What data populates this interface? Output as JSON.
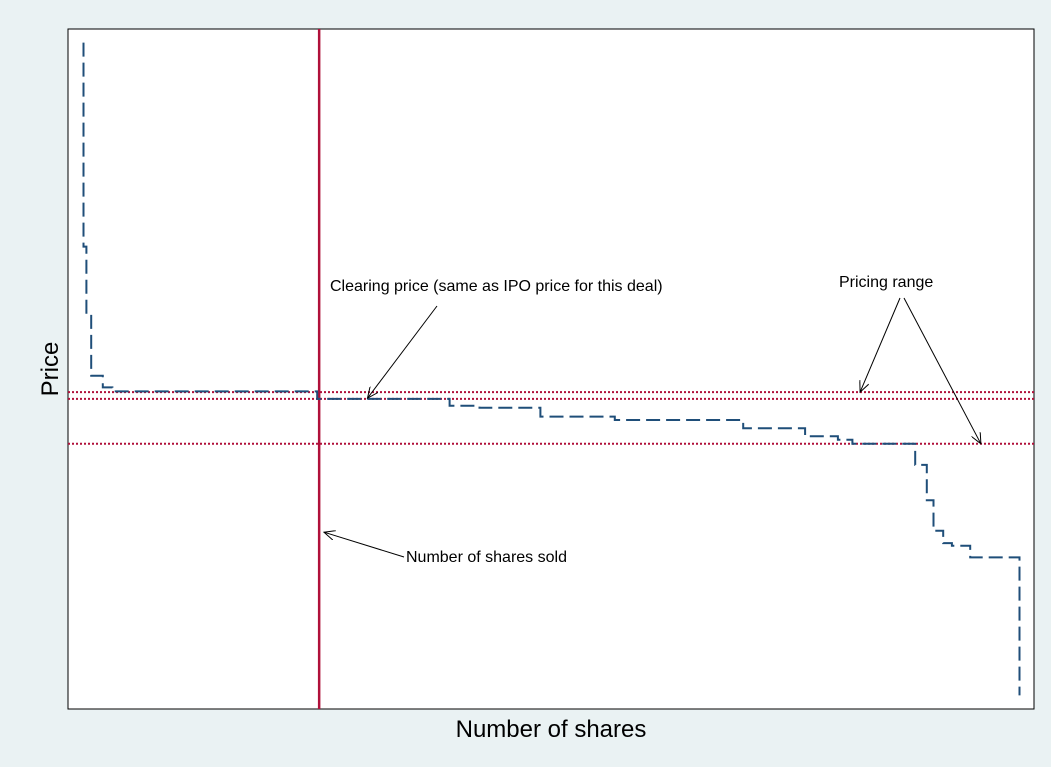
{
  "chart_data": {
    "type": "line",
    "title": "",
    "xlabel": "Number of shares",
    "ylabel": "Price",
    "xlim": [
      0,
      100
    ],
    "ylim": [
      0,
      100
    ],
    "grid": false,
    "colors": {
      "background": "#eaf2f3",
      "plot_background": "#ffffff",
      "demand_curve": "#1f4e79",
      "reference_lines": "#b0103a",
      "annotation": "#000000"
    },
    "series": [
      {
        "style": "dashed",
        "x": [
          1.6,
          1.6,
          1.9,
          1.9,
          2.4,
          2.4,
          3.6,
          3.6,
          4.6,
          4.6,
          25.8,
          25.8,
          39.5,
          39.5,
          42.6,
          42.6,
          48.9,
          48.9,
          56.6,
          56.6,
          69.9,
          69.9,
          76.3,
          76.3,
          79.7,
          79.7,
          81.2,
          81.2,
          87.7,
          87.7,
          88.9,
          88.9,
          89.6,
          89.6,
          90.6,
          90.6,
          91.5,
          91.5,
          93.4,
          93.4,
          98.5,
          98.5
        ],
        "y": [
          98.0,
          68.0,
          68.0,
          58.0,
          58.0,
          49.0,
          49.0,
          47.3,
          47.3,
          46.7,
          46.7,
          45.6,
          45.6,
          44.6,
          44.6,
          44.3,
          44.3,
          43.0,
          43.0,
          42.5,
          42.5,
          41.3,
          41.3,
          40.1,
          40.1,
          39.6,
          39.6,
          39.0,
          39.0,
          35.9,
          35.9,
          30.7,
          30.7,
          26.2,
          26.2,
          24.4,
          24.4,
          24.0,
          24.0,
          22.3,
          22.3,
          2.0
        ]
      }
    ],
    "horizontal_lines": [
      {
        "y": 46.6,
        "style": "dotted"
      },
      {
        "y": 45.6,
        "style": "dotted"
      },
      {
        "y": 39.0,
        "style": "dotted"
      }
    ],
    "vertical_lines": [
      {
        "x": 26.0,
        "style": "solid"
      }
    ],
    "annotations": [
      {
        "text": "Clearing price (same as IPO price for this deal)",
        "points_to": {
          "x": 31.0,
          "y": 45.7
        }
      },
      {
        "text": "Pricing range",
        "points_to": [
          {
            "x": 82.0,
            "y": 46.6
          },
          {
            "x": 94.5,
            "y": 39.0
          }
        ]
      },
      {
        "text": "Number of shares sold",
        "points_to": {
          "x": 26.5,
          "y": 26.0
        }
      }
    ]
  }
}
